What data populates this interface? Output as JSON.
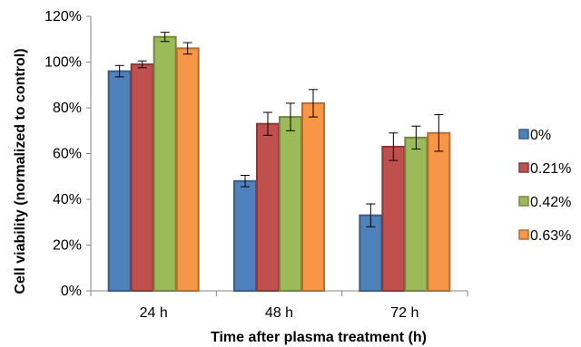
{
  "chart_data": {
    "type": "bar",
    "categories": [
      "24 h",
      "48 h",
      "72 h"
    ],
    "series": [
      {
        "name": "0%",
        "values": [
          96,
          48,
          33
        ],
        "errors": [
          2.5,
          2.5,
          5
        ],
        "color": "#4F81BD",
        "edge": "#385D8A"
      },
      {
        "name": "0.21%",
        "values": [
          99,
          73,
          63
        ],
        "errors": [
          1.5,
          5,
          6
        ],
        "color": "#C0504D",
        "edge": "#8C3836"
      },
      {
        "name": "0.42%",
        "values": [
          111,
          76,
          67
        ],
        "errors": [
          2,
          6,
          5
        ],
        "color": "#9BBB59",
        "edge": "#71893F"
      },
      {
        "name": "0.63%",
        "values": [
          106,
          82,
          69
        ],
        "errors": [
          2.5,
          6,
          8
        ],
        "color": "#F79646",
        "edge": "#B66D31"
      }
    ],
    "title": "",
    "xlabel": "Time after plasma treatment (h)",
    "ylabel": "Cell viability (normalized to control)",
    "ylim": [
      0,
      120
    ],
    "yticks": [
      "0%",
      "20%",
      "40%",
      "60%",
      "80%",
      "100%",
      "120%"
    ],
    "ytick_values": [
      0,
      20,
      40,
      60,
      80,
      100,
      120
    ],
    "grid": false,
    "legend_position": "right"
  }
}
